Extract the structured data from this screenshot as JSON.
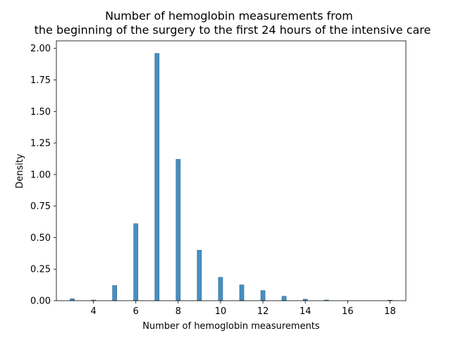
{
  "chart_data": {
    "type": "bar",
    "title": [
      "Number of hemoglobin measurements from",
      "the beginning of the surgery to the first 24 hours of the intensive care"
    ],
    "xlabel": "Number of hemoglobin measurements",
    "ylabel": "Density",
    "xlim": [
      2.25,
      18.75
    ],
    "ylim": [
      0,
      2.0597
    ],
    "xticks": [
      4,
      6,
      8,
      10,
      12,
      14,
      16,
      18
    ],
    "yticks": [
      0.0,
      0.25,
      0.5,
      0.75,
      1.0,
      1.25,
      1.5,
      1.75,
      2.0
    ],
    "ytick_labels": [
      "0.00",
      "0.25",
      "0.50",
      "0.75",
      "1.00",
      "1.25",
      "1.50",
      "1.75",
      "2.00"
    ],
    "grid": false,
    "bar_color": "#1f77b4",
    "bin_width": 0.2,
    "bars": [
      {
        "x": 3,
        "value": 0.015
      },
      {
        "x": 4,
        "value": 0.005
      },
      {
        "x": 5,
        "value": 0.12
      },
      {
        "x": 6,
        "value": 0.61
      },
      {
        "x": 7,
        "value": 1.96
      },
      {
        "x": 8,
        "value": 1.12
      },
      {
        "x": 9,
        "value": 0.4
      },
      {
        "x": 10,
        "value": 0.185
      },
      {
        "x": 11,
        "value": 0.125
      },
      {
        "x": 12,
        "value": 0.08
      },
      {
        "x": 13,
        "value": 0.035
      },
      {
        "x": 14,
        "value": 0.012
      },
      {
        "x": 15,
        "value": 0.005
      },
      {
        "x": 18,
        "value": 0.004
      }
    ]
  }
}
